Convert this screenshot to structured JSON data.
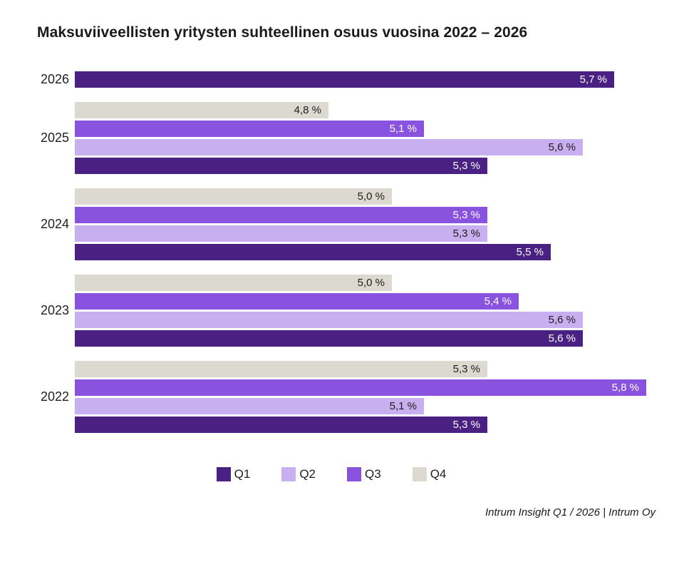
{
  "page": {
    "background": "#FFFFFF"
  },
  "chart_data": {
    "type": "bar",
    "orientation": "horizontal",
    "title": "Maksuviiveellisten yritysten suhteellinen osuus vuosina 2022 – 2026",
    "xlim": [
      4.0,
      5.83
    ],
    "grid": false,
    "legend_position": "bottom",
    "value_suffix": "%",
    "decimal_separator": ",",
    "series": [
      {
        "name": "Q1",
        "color": "#4A2183",
        "label_color": "#FFFFFF"
      },
      {
        "name": "Q2",
        "color": "#C8AFEF",
        "label_color": "#1D1D1B"
      },
      {
        "name": "Q3",
        "color": "#8A53DF",
        "label_color": "#FFFFFF"
      },
      {
        "name": "Q4",
        "color": "#DCD9D0",
        "label_color": "#1D1D1B"
      }
    ],
    "legend": [
      "Q1",
      "Q2",
      "Q3",
      "Q4"
    ],
    "groups": [
      {
        "year": "2026",
        "bars": [
          {
            "quarter": "Q1",
            "value": 5.7,
            "label": "5,7 %"
          }
        ]
      },
      {
        "year": "2025",
        "bars": [
          {
            "quarter": "Q4",
            "value": 4.8,
            "label": "4,8 %"
          },
          {
            "quarter": "Q3",
            "value": 5.1,
            "label": "5,1 %"
          },
          {
            "quarter": "Q2",
            "value": 5.6,
            "label": "5,6 %"
          },
          {
            "quarter": "Q1",
            "value": 5.3,
            "label": "5,3 %"
          }
        ]
      },
      {
        "year": "2024",
        "bars": [
          {
            "quarter": "Q4",
            "value": 5.0,
            "label": "5,0 %"
          },
          {
            "quarter": "Q3",
            "value": 5.3,
            "label": "5,3 %"
          },
          {
            "quarter": "Q2",
            "value": 5.3,
            "label": "5,3 %"
          },
          {
            "quarter": "Q1",
            "value": 5.5,
            "label": "5,5 %"
          }
        ]
      },
      {
        "year": "2023",
        "bars": [
          {
            "quarter": "Q4",
            "value": 5.0,
            "label": "5,0 %"
          },
          {
            "quarter": "Q3",
            "value": 5.4,
            "label": "5,4 %"
          },
          {
            "quarter": "Q2",
            "value": 5.6,
            "label": "5,6 %"
          },
          {
            "quarter": "Q1",
            "value": 5.6,
            "label": "5,6 %"
          }
        ]
      },
      {
        "year": "2022",
        "bars": [
          {
            "quarter": "Q4",
            "value": 5.3,
            "label": "5,3 %"
          },
          {
            "quarter": "Q3",
            "value": 5.8,
            "label": "5,8 %"
          },
          {
            "quarter": "Q2",
            "value": 5.1,
            "label": "5,1 %"
          },
          {
            "quarter": "Q1",
            "value": 5.3,
            "label": "5,3 %"
          }
        ]
      }
    ]
  },
  "footer": {
    "text": "Intrum Insight Q1 / 2026 | Intrum Oy"
  }
}
